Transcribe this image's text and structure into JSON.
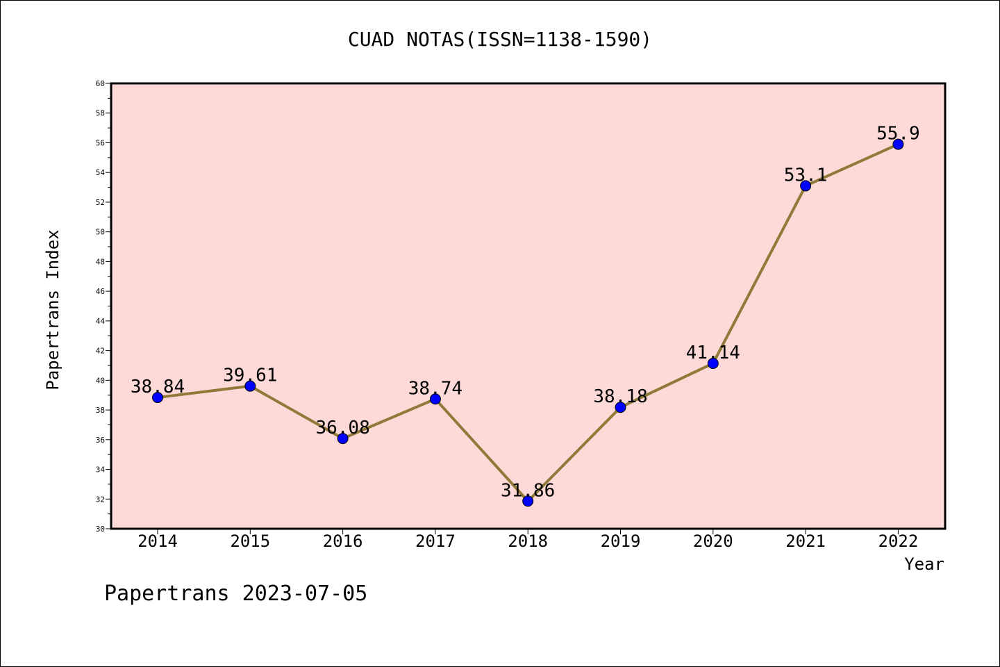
{
  "chart_data": {
    "type": "line",
    "title": "CUAD NOTAS(ISSN=1138-1590)",
    "xlabel": "Year",
    "ylabel": "Papertrans Index",
    "footer": "Papertrans 2023-07-05",
    "x": [
      "2014",
      "2015",
      "2016",
      "2017",
      "2018",
      "2019",
      "2020",
      "2021",
      "2022"
    ],
    "values": [
      38.84,
      39.61,
      36.08,
      38.74,
      31.86,
      38.18,
      41.14,
      53.1,
      55.9
    ],
    "data_labels": [
      "38.84",
      "39.61",
      "36.08",
      "38.74",
      "31.86",
      "38.18",
      "41.14",
      "53.1",
      "55.9"
    ],
    "ylim": [
      30,
      60
    ],
    "y_ticks": [
      "30",
      "32",
      "34",
      "36",
      "38",
      "40",
      "42",
      "44",
      "46",
      "48",
      "50",
      "52",
      "54",
      "56",
      "58",
      "60"
    ],
    "grid": false,
    "colors": {
      "plot_background": "#fddad8",
      "line": "#8f7a3a",
      "marker": "#0000ff",
      "axis": "#000000"
    }
  }
}
